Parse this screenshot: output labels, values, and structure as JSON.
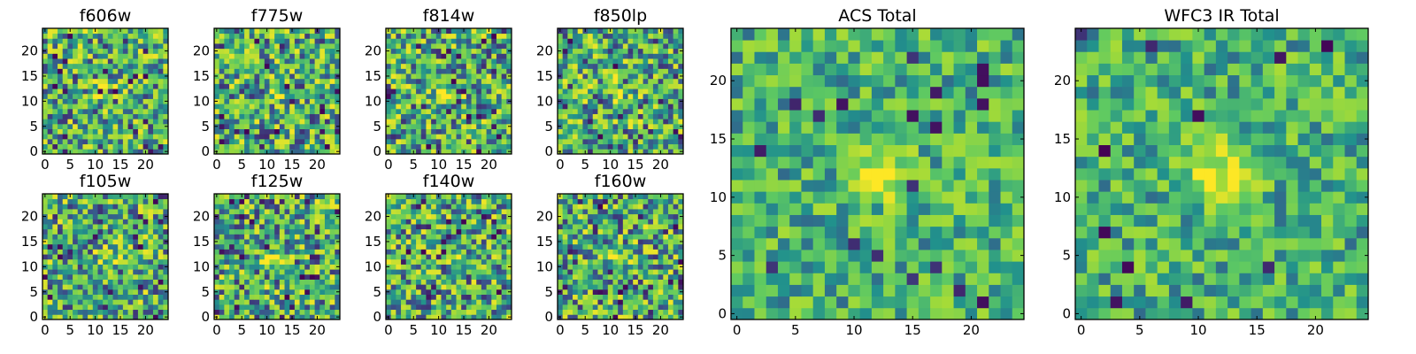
{
  "palette": [
    "#440154",
    "#3b528b",
    "#21918c",
    "#5ec962",
    "#a0da39",
    "#fde725"
  ],
  "chart_data": [
    {
      "type": "heatmap",
      "title": "f606w",
      "grid": [
        25,
        25
      ],
      "xlim": [
        0,
        24
      ],
      "ylim": [
        0,
        24
      ],
      "xticks": [
        "0",
        "5",
        "10",
        "15",
        "20"
      ],
      "yticks": [
        "0",
        "5",
        "10",
        "15",
        "20"
      ],
      "colormap": "viridis",
      "source_center": [
        12,
        12
      ]
    },
    {
      "type": "heatmap",
      "title": "f775w",
      "grid": [
        25,
        25
      ],
      "xlim": [
        0,
        24
      ],
      "ylim": [
        0,
        24
      ],
      "xticks": [
        "0",
        "5",
        "10",
        "15",
        "20"
      ],
      "yticks": [
        "0",
        "5",
        "10",
        "15",
        "20"
      ],
      "colormap": "viridis",
      "source_center": [
        12,
        12
      ]
    },
    {
      "type": "heatmap",
      "title": "f814w",
      "grid": [
        25,
        25
      ],
      "xlim": [
        0,
        24
      ],
      "ylim": [
        0,
        24
      ],
      "xticks": [
        "0",
        "5",
        "10",
        "15",
        "20"
      ],
      "yticks": [
        "0",
        "5",
        "10",
        "15",
        "20"
      ],
      "colormap": "viridis",
      "source_center": [
        12,
        12
      ]
    },
    {
      "type": "heatmap",
      "title": "f850lp",
      "grid": [
        25,
        25
      ],
      "xlim": [
        0,
        24
      ],
      "ylim": [
        0,
        24
      ],
      "xticks": [
        "0",
        "5",
        "10",
        "15",
        "20"
      ],
      "yticks": [
        "0",
        "5",
        "10",
        "15",
        "20"
      ],
      "colormap": "viridis",
      "source_center": [
        12,
        12
      ]
    },
    {
      "type": "heatmap",
      "title": "f105w",
      "grid": [
        25,
        25
      ],
      "xlim": [
        0,
        24
      ],
      "ylim": [
        0,
        24
      ],
      "xticks": [
        "0",
        "5",
        "10",
        "15",
        "20"
      ],
      "yticks": [
        "0",
        "5",
        "10",
        "15",
        "20"
      ],
      "colormap": "viridis",
      "source_center": [
        12,
        12
      ]
    },
    {
      "type": "heatmap",
      "title": "f125w",
      "grid": [
        25,
        25
      ],
      "xlim": [
        0,
        24
      ],
      "ylim": [
        0,
        24
      ],
      "xticks": [
        "0",
        "5",
        "10",
        "15",
        "20"
      ],
      "yticks": [
        "0",
        "5",
        "10",
        "15",
        "20"
      ],
      "colormap": "viridis",
      "source_center": [
        12,
        12
      ]
    },
    {
      "type": "heatmap",
      "title": "f140w",
      "grid": [
        25,
        25
      ],
      "xlim": [
        0,
        24
      ],
      "ylim": [
        0,
        24
      ],
      "xticks": [
        "0",
        "5",
        "10",
        "15",
        "20"
      ],
      "yticks": [
        "0",
        "5",
        "10",
        "15",
        "20"
      ],
      "colormap": "viridis",
      "source_center": [
        12,
        12
      ]
    },
    {
      "type": "heatmap",
      "title": "f160w",
      "grid": [
        25,
        25
      ],
      "xlim": [
        0,
        24
      ],
      "ylim": [
        0,
        24
      ],
      "xticks": [
        "0",
        "5",
        "10",
        "15",
        "20"
      ],
      "yticks": [
        "0",
        "5",
        "10",
        "15",
        "20"
      ],
      "colormap": "viridis",
      "source_center": [
        12,
        12
      ]
    },
    {
      "type": "heatmap",
      "title": "ACS Total",
      "grid": [
        25,
        25
      ],
      "xlim": [
        0,
        24
      ],
      "ylim": [
        0,
        24
      ],
      "xticks": [
        "0",
        "5",
        "10",
        "15",
        "20"
      ],
      "yticks": [
        "0",
        "5",
        "10",
        "15",
        "20"
      ],
      "colormap": "viridis",
      "source_center": [
        12,
        12
      ]
    },
    {
      "type": "heatmap",
      "title": "WFC3 IR Total",
      "grid": [
        25,
        25
      ],
      "xlim": [
        0,
        24
      ],
      "ylim": [
        0,
        24
      ],
      "xticks": [
        "0",
        "5",
        "10",
        "15",
        "20"
      ],
      "yticks": [
        "0",
        "5",
        "10",
        "15",
        "20"
      ],
      "colormap": "viridis",
      "source_center": [
        12,
        12
      ]
    }
  ]
}
